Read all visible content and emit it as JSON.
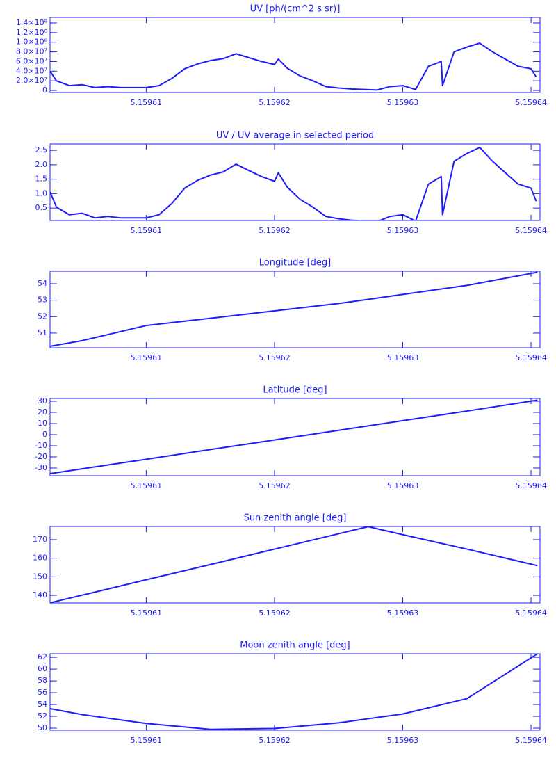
{
  "chart_data": [
    {
      "type": "line",
      "title": "UV [ph/(cm^2 s sr)]",
      "color": "#1c1cff",
      "x": [
        5.1596025,
        5.159603,
        5.159604,
        5.159605,
        5.159606,
        5.159607,
        5.159608,
        5.159609,
        5.15961,
        5.159611,
        5.159612,
        5.159613,
        5.159614,
        5.159615,
        5.159616,
        5.159617,
        5.159618,
        5.159619,
        5.15962,
        5.1596203,
        5.159621,
        5.159622,
        5.159623,
        5.159624,
        5.159625,
        5.159626,
        5.159627,
        5.159628,
        5.159629,
        5.15963,
        5.159631,
        5.159632,
        5.159633,
        5.1596331,
        5.159634,
        5.159635,
        5.159636,
        5.159637,
        5.159638,
        5.159639,
        5.15964,
        5.1596404
      ],
      "values": [
        40000000,
        20000000,
        10000000,
        12000000,
        6000000,
        8000000,
        6000000,
        6000000,
        6000000,
        10000000,
        25000000,
        45000000,
        55000000,
        62000000,
        66000000,
        76000000,
        68000000,
        60000000,
        54000000,
        65000000,
        46000000,
        30000000,
        20000000,
        8000000,
        5000000,
        3000000,
        2000000,
        1000000,
        8000000,
        10000000,
        2000000,
        50000000,
        60000000,
        10000000,
        80000000,
        90000000,
        98000000,
        80000000,
        65000000,
        50000000,
        45000000,
        28000000
      ],
      "xlim": [
        5.1596025,
        5.1596407
      ],
      "xticks": [
        5.15961,
        5.15962,
        5.15963,
        5.15964
      ],
      "ylim": [
        -4300000,
        151500000
      ],
      "yticks": [
        0,
        {
          "value": 20000000,
          "label": "2.0×10⁷"
        },
        {
          "value": 40000000,
          "label": "4.0×10⁷"
        },
        {
          "value": 60000000,
          "label": "6.0×10⁷"
        },
        {
          "value": 80000000,
          "label": "8.0×10⁷"
        },
        {
          "value": 100000000,
          "label": "1.0×10⁸"
        },
        {
          "value": 120000000,
          "label": "1.2×10⁸"
        },
        {
          "value": 140000000,
          "label": "1.4×10⁸"
        }
      ]
    },
    {
      "type": "line",
      "title": "UV / UV average in selected period",
      "color": "#1c1cff",
      "x": [
        5.1596025,
        5.159603,
        5.159604,
        5.159605,
        5.159606,
        5.159607,
        5.159608,
        5.159609,
        5.15961,
        5.159611,
        5.159612,
        5.159613,
        5.159614,
        5.159615,
        5.159616,
        5.159617,
        5.159618,
        5.159619,
        5.15962,
        5.1596203,
        5.159621,
        5.159622,
        5.159623,
        5.159624,
        5.159625,
        5.159626,
        5.159627,
        5.159628,
        5.159629,
        5.15963,
        5.159631,
        5.159632,
        5.159633,
        5.1596331,
        5.159634,
        5.159635,
        5.159636,
        5.159637,
        5.159638,
        5.159639,
        5.15964,
        5.1596404
      ],
      "values": [
        1.06,
        0.53,
        0.27,
        0.32,
        0.16,
        0.21,
        0.16,
        0.16,
        0.16,
        0.27,
        0.66,
        1.19,
        1.46,
        1.64,
        1.75,
        2.02,
        1.8,
        1.59,
        1.43,
        1.72,
        1.22,
        0.8,
        0.53,
        0.21,
        0.13,
        0.08,
        0.05,
        0.03,
        0.21,
        0.27,
        0.05,
        1.33,
        1.59,
        0.27,
        2.12,
        2.39,
        2.6,
        2.12,
        1.72,
        1.33,
        1.19,
        0.74
      ],
      "xlim": [
        5.1596025,
        5.1596407
      ],
      "xticks": [
        5.15961,
        5.15962,
        5.15963,
        5.15964
      ],
      "ylim": [
        0.07,
        2.72
      ],
      "yticks": [
        0.5,
        {
          "value": 1,
          "label": "1.0"
        },
        1.5,
        {
          "value": 2,
          "label": "2.0"
        },
        2.5
      ]
    },
    {
      "type": "line",
      "title": "Longitude [deg]",
      "color": "#1c1cff",
      "x": [
        5.1596025,
        5.159605,
        5.15961,
        5.159615,
        5.15962,
        5.159625,
        5.1596273,
        5.15963,
        5.159635,
        5.1596405
      ],
      "values": [
        50.2,
        50.54,
        51.46,
        51.9,
        52.35,
        52.8,
        53.05,
        53.35,
        53.9,
        54.7
      ],
      "xlim": [
        5.1596025,
        5.1596407
      ],
      "xticks": [
        5.15961,
        5.15962,
        5.15963,
        5.15964
      ],
      "ylim": [
        50.11,
        54.76
      ],
      "yticks": [
        51,
        52,
        53,
        54
      ]
    },
    {
      "type": "line",
      "title": "Latitude [deg]",
      "color": "#1c1cff",
      "x": [
        5.1596025,
        5.159605,
        5.15961,
        5.159615,
        5.15962,
        5.159625,
        5.1596273,
        5.15963,
        5.159635,
        5.1596405
      ],
      "values": [
        -35,
        -30.7,
        -22.1,
        -13.4,
        -4.8,
        3.9,
        7.9,
        12.6,
        21.2,
        31
      ],
      "xlim": [
        5.1596025,
        5.1596407
      ],
      "xticks": [
        5.15961,
        5.15962,
        5.15963,
        5.15964
      ],
      "ylim": [
        -36.9,
        32.5
      ],
      "yticks": [
        -30,
        -20,
        -10,
        0,
        10,
        20,
        30
      ]
    },
    {
      "type": "line",
      "title": "Sun zenith angle [deg]",
      "color": "#1c1cff",
      "x": [
        5.1596025,
        5.159605,
        5.15961,
        5.159615,
        5.15962,
        5.159625,
        5.1596273,
        5.15963,
        5.159635,
        5.1596405
      ],
      "values": [
        136,
        140.1,
        148.4,
        156.6,
        164.9,
        173.2,
        177,
        172.7,
        164.9,
        156
      ],
      "xlim": [
        5.1596025,
        5.1596407
      ],
      "xticks": [
        5.15961,
        5.15962,
        5.15963,
        5.15964
      ],
      "ylim": [
        135.9,
        177.1
      ],
      "yticks": [
        140,
        150,
        160,
        170
      ]
    },
    {
      "type": "line",
      "title": "Moon zenith angle [deg]",
      "color": "#1c1cff",
      "x": [
        5.1596025,
        5.159605,
        5.15961,
        5.159615,
        5.15962,
        5.159625,
        5.1596273,
        5.15963,
        5.159635,
        5.1596405
      ],
      "values": [
        53.3,
        52.3,
        50.8,
        49.8,
        49.95,
        50.9,
        51.6,
        52.4,
        55,
        62.6
      ],
      "xlim": [
        5.1596025,
        5.1596407
      ],
      "xticks": [
        5.15961,
        5.15962,
        5.15963,
        5.15964
      ],
      "ylim": [
        49.65,
        62.6
      ],
      "yticks": [
        50,
        52,
        54,
        56,
        58,
        60,
        62
      ]
    }
  ]
}
